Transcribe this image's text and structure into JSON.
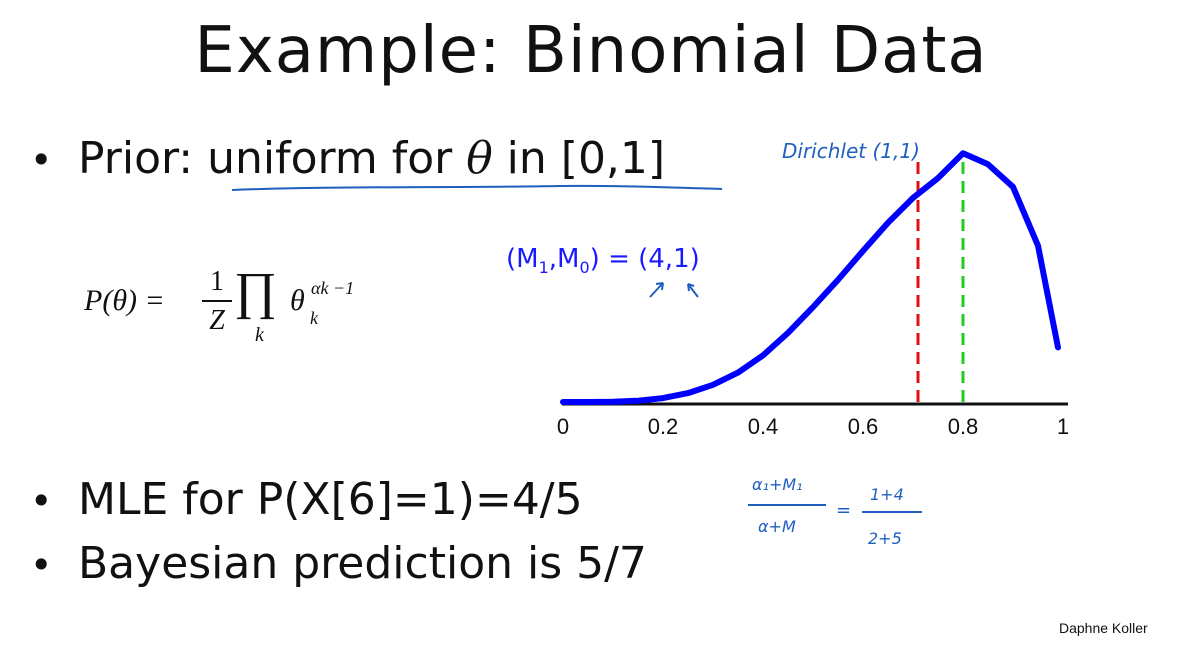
{
  "slide": {
    "title": "Example: Binomial Data",
    "bullet_prior_prefix": "Prior: ",
    "bullet_prior_underlined_a": "uniform for ",
    "bullet_prior_theta": "θ",
    "bullet_prior_underlined_b": " in [0,1]",
    "bullet_mle": "MLE for P(X[6]=1)=4/5",
    "bullet_bayes": "Bayesian prediction is 5/7",
    "attribution": "Daphne Koller",
    "bullet_symbol": "•"
  },
  "formula": {
    "lhs": "P(θ) =",
    "frac_num": "1",
    "frac_den": "Z",
    "prod_symbol": "∏",
    "prod_index": "k",
    "base": "θ",
    "exponent": "αk −1",
    "subscript": "k"
  },
  "counts": {
    "label": "(M",
    "sub1": "1",
    "mid": ",M",
    "sub0": "0",
    "value": ") = (4,1)"
  },
  "handwritten": {
    "dirichlet_label": "Dirichlet (1,1)",
    "numerator": "α₁+M₁",
    "denominator": "α+M",
    "equals": "=",
    "rhs_numerator": "1+4",
    "rhs_denominator": "2+5"
  },
  "chart_data": {
    "type": "line",
    "xlim": [
      0,
      1
    ],
    "xticks": [
      0,
      0.2,
      0.4,
      0.6,
      0.8,
      1
    ],
    "xtick_labels": [
      "0",
      "0.2",
      "0.4",
      "0.6",
      "0.8",
      "1"
    ],
    "series": [
      {
        "color": "#0000ff",
        "x": [
          0,
          0.05,
          0.1,
          0.15,
          0.2,
          0.25,
          0.3,
          0.35,
          0.4,
          0.45,
          0.5,
          0.55,
          0.6,
          0.65,
          0.7,
          0.75,
          0.8,
          0.85,
          0.9,
          0.95,
          0.99
        ],
        "y": [
          0,
          3e-05,
          0.0005,
          0.0022,
          0.0064,
          0.0146,
          0.0283,
          0.0485,
          0.0768,
          0.1138,
          0.1563,
          0.2013,
          0.2488,
          0.2953,
          0.3361,
          0.3687,
          0.4096,
          0.3915,
          0.3543,
          0.2575,
          0.09
        ]
      }
    ],
    "ylim": [
      0,
      0.42
    ],
    "vlines": [
      {
        "x": 0.71,
        "color": "#e01010",
        "style": "dashed"
      },
      {
        "x": 0.8,
        "color": "#22cc22",
        "style": "dashed"
      }
    ],
    "grid": false,
    "legend": "none"
  }
}
